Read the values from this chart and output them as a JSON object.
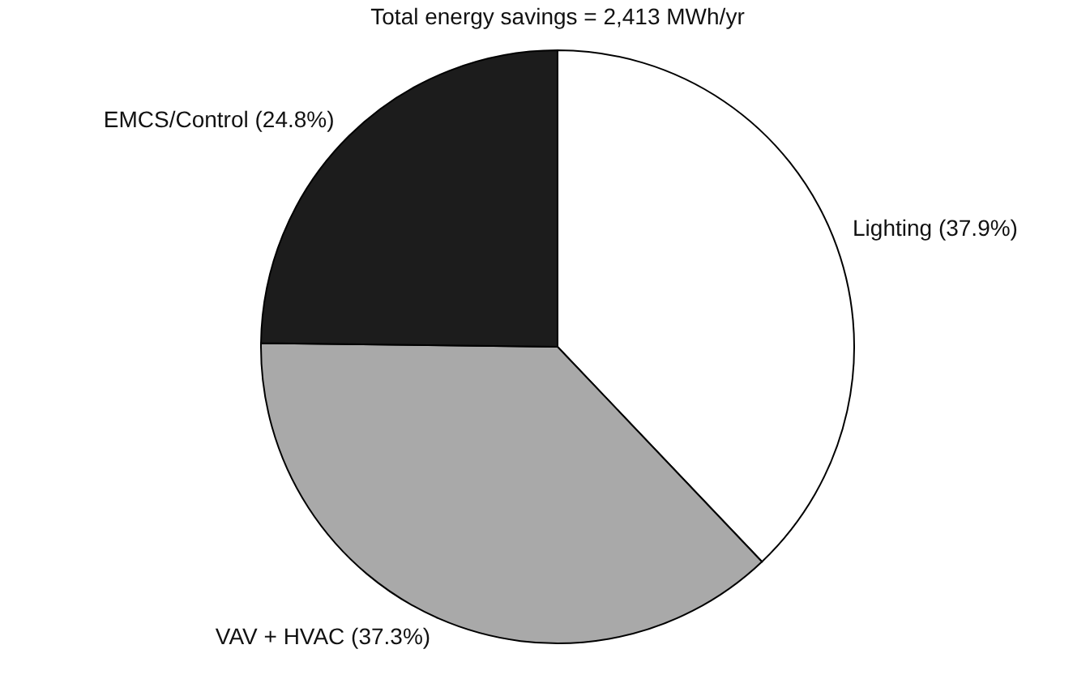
{
  "chart_data": {
    "type": "pie",
    "title": "Total energy savings = 2,413 MWh/yr",
    "categories": [
      "Lighting (37.9%)",
      "VAV + HVAC (37.3%)",
      "EMCS/Control (24.8%)"
    ],
    "values": [
      37.9,
      37.3,
      24.8
    ],
    "colors": [
      "#ffffff",
      "#a9a9a9",
      "#1c1c1c"
    ],
    "legend": false
  }
}
